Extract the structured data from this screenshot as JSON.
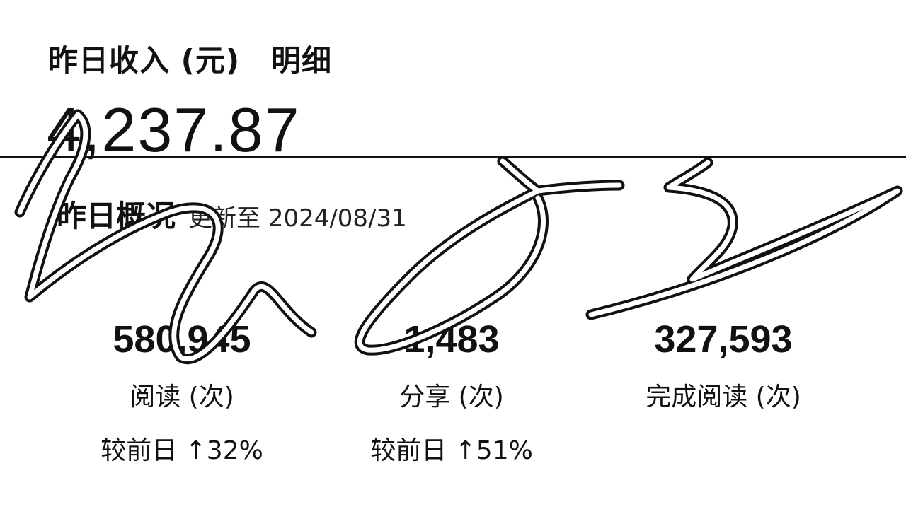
{
  "earnings": {
    "label": "昨日收入 (元)",
    "detail_link": "明细",
    "value": "4,237.87"
  },
  "overview": {
    "title": "昨日概况",
    "updated": "更新至 2024/08/31"
  },
  "stats": [
    {
      "value": "580,945",
      "label": "阅读 (次)",
      "compare": "较前日 ↑32%"
    },
    {
      "value": "1,483",
      "label": "分享 (次)",
      "compare": "较前日 ↑51%"
    },
    {
      "value": "327,593",
      "label": "完成阅读 (次)",
      "compare": ""
    }
  ]
}
